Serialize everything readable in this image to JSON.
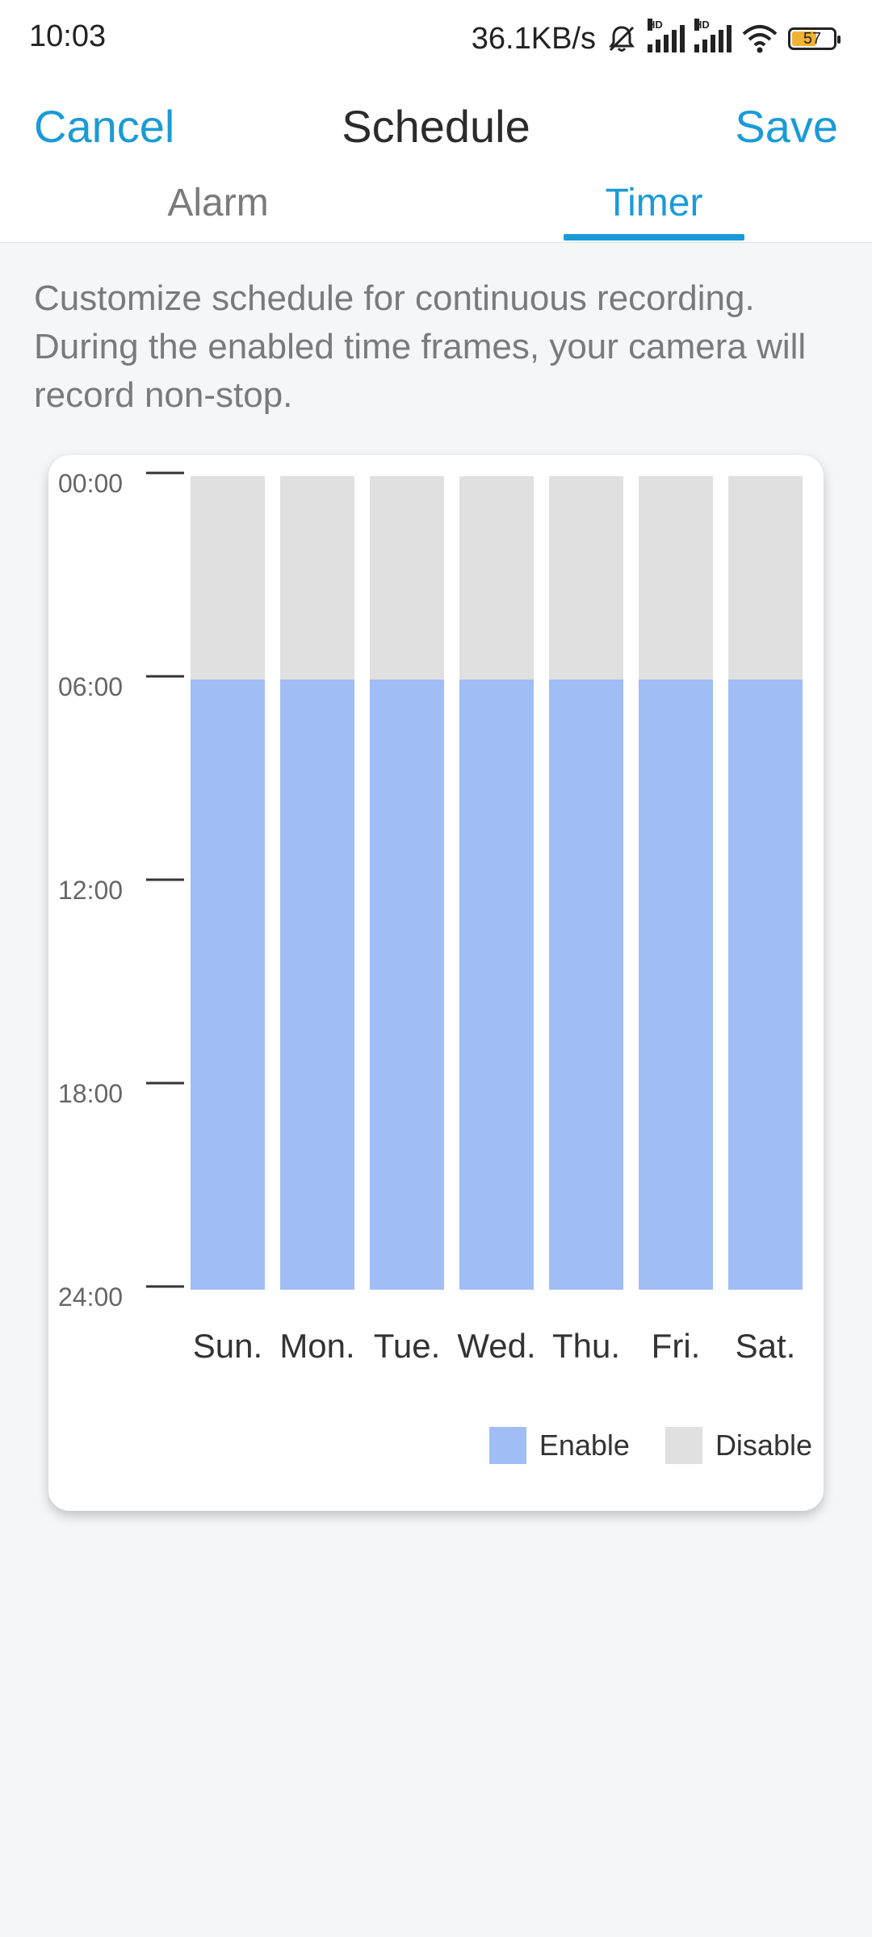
{
  "status_bar": {
    "time": "10:03",
    "network_speed": "36.1KB/s",
    "icons": [
      "mute-bell-icon",
      "hd-signal-icon",
      "hd-signal-icon",
      "wifi-icon",
      "battery-icon"
    ],
    "battery": "57"
  },
  "header": {
    "cancel_label": "Cancel",
    "title": "Schedule",
    "save_label": "Save"
  },
  "tabs": [
    {
      "label": "Alarm",
      "active": false
    },
    {
      "label": "Timer",
      "active": true
    }
  ],
  "description": "Customize schedule for continuous recording. During the enabled time frames, your camera will record non-stop.",
  "colors": {
    "accent": "#1a9bd7",
    "enable": "#a0bdf5",
    "disable": "#e0e0e0"
  },
  "legend": {
    "enable_label": "Enable",
    "disable_label": "Disable"
  },
  "chart_data": {
    "type": "bar",
    "categories": [
      "Sun.",
      "Mon.",
      "Tue.",
      "Wed.",
      "Thu.",
      "Fri.",
      "Sat."
    ],
    "y_ticks": [
      "00:00",
      "06:00",
      "12:00",
      "18:00",
      "24:00"
    ],
    "ylim": [
      0,
      24
    ],
    "series": [
      {
        "name": "Enable",
        "start_hour": [
          6,
          6,
          6,
          6,
          6,
          6,
          6
        ],
        "end_hour": [
          24,
          24,
          24,
          24,
          24,
          24,
          24
        ]
      },
      {
        "name": "Disable",
        "start_hour": [
          0,
          0,
          0,
          0,
          0,
          0,
          0
        ],
        "end_hour": [
          6,
          6,
          6,
          6,
          6,
          6,
          6
        ]
      }
    ]
  }
}
